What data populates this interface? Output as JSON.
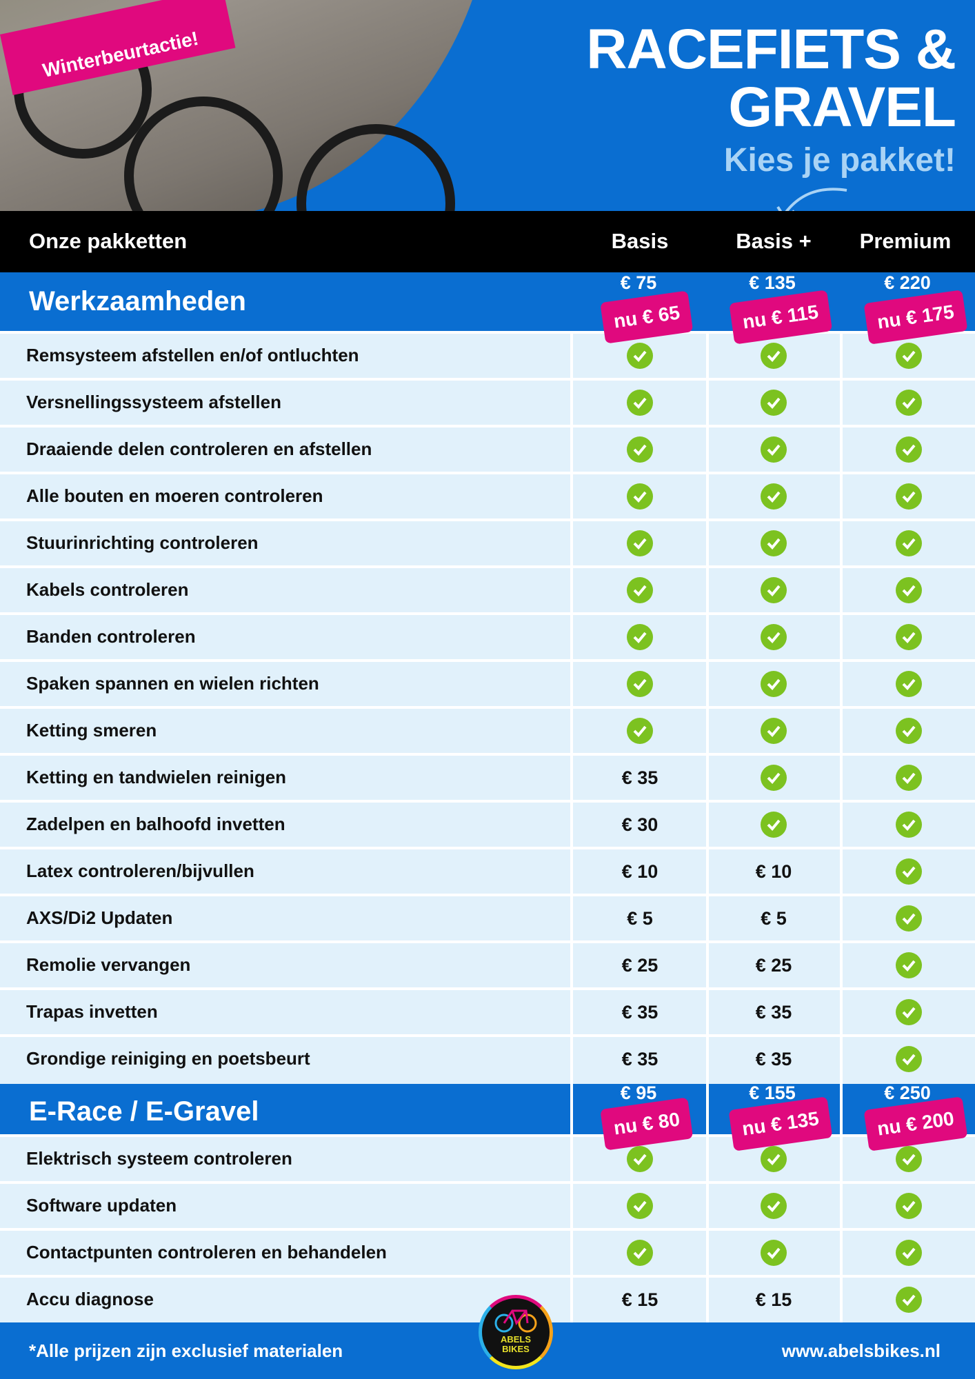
{
  "promo_badge": "Winterbeurtactie!",
  "title_line1": "RACEFIETS &",
  "title_line2": "GRAVEL",
  "subtitle": "Kies je pakket!",
  "header": {
    "label": "Onze pakketten",
    "columns": [
      "Basis",
      "Basis +",
      "Premium"
    ]
  },
  "sections": [
    {
      "name": "Werkzaamheden",
      "prices": [
        "€ 75",
        "€ 135",
        "€ 220"
      ],
      "sale_prices": [
        "nu € 65",
        "nu € 115",
        "nu € 175"
      ],
      "rows": [
        {
          "label": "Remsysteem afstellen en/of ontluchten",
          "values": [
            "check",
            "check",
            "check"
          ]
        },
        {
          "label": "Versnellingssysteem afstellen",
          "values": [
            "check",
            "check",
            "check"
          ]
        },
        {
          "label": "Draaiende delen controleren en afstellen",
          "values": [
            "check",
            "check",
            "check"
          ]
        },
        {
          "label": "Alle bouten en moeren controleren",
          "values": [
            "check",
            "check",
            "check"
          ]
        },
        {
          "label": "Stuurinrichting controleren",
          "values": [
            "check",
            "check",
            "check"
          ]
        },
        {
          "label": "Kabels controleren",
          "values": [
            "check",
            "check",
            "check"
          ]
        },
        {
          "label": "Banden controleren",
          "values": [
            "check",
            "check",
            "check"
          ]
        },
        {
          "label": "Spaken spannen en wielen richten",
          "values": [
            "check",
            "check",
            "check"
          ]
        },
        {
          "label": "Ketting smeren",
          "values": [
            "check",
            "check",
            "check"
          ]
        },
        {
          "label": "Ketting en tandwielen reinigen",
          "values": [
            "€ 35",
            "check",
            "check"
          ]
        },
        {
          "label": "Zadelpen en balhoofd invetten",
          "values": [
            "€ 30",
            "check",
            "check"
          ]
        },
        {
          "label": "Latex controleren/bijvullen",
          "values": [
            "€ 10",
            "€ 10",
            "check"
          ]
        },
        {
          "label": "AXS/Di2 Updaten",
          "values": [
            "€ 5",
            "€ 5",
            "check"
          ]
        },
        {
          "label": "Remolie vervangen",
          "values": [
            "€ 25",
            "€ 25",
            "check"
          ]
        },
        {
          "label": "Trapas invetten",
          "values": [
            "€ 35",
            "€ 35",
            "check"
          ]
        },
        {
          "label": "Grondige reiniging en poetsbeurt",
          "values": [
            "€ 35",
            "€ 35",
            "check"
          ]
        }
      ]
    },
    {
      "name": "E-Race / E-Gravel",
      "prices": [
        "€ 95",
        "€ 155",
        "€ 250"
      ],
      "sale_prices": [
        "nu € 80",
        "nu € 135",
        "nu € 200"
      ],
      "rows": [
        {
          "label": "Elektrisch systeem controleren",
          "values": [
            "check",
            "check",
            "check"
          ]
        },
        {
          "label": "Software updaten",
          "values": [
            "check",
            "check",
            "check"
          ]
        },
        {
          "label": "Contactpunten controleren en behandelen",
          "values": [
            "check",
            "check",
            "check"
          ]
        },
        {
          "label": "Accu diagnose",
          "values": [
            "€ 15",
            "€ 15",
            "check"
          ]
        }
      ]
    }
  ],
  "footer": {
    "note": "*Alle prijzen zijn exclusief materialen",
    "website": "www.abelsbikes.nl",
    "logo_text": "ABELS BIKES"
  },
  "colors": {
    "blue": "#0a6ed1",
    "pink": "#e0097e",
    "check_green": "#7cc220",
    "row_bg": "#e1f1fb"
  }
}
